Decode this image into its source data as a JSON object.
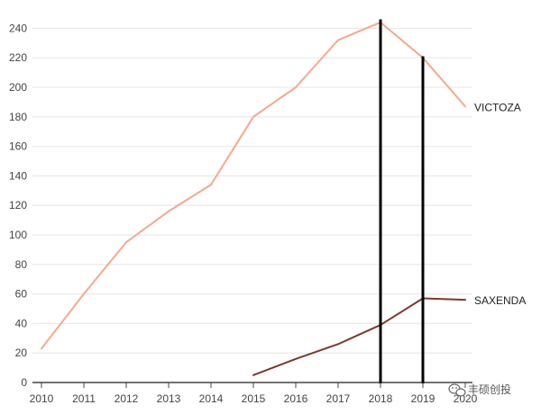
{
  "chart_data": {
    "type": "line",
    "x": [
      "2010",
      "2011",
      "2012",
      "2013",
      "2014",
      "2015",
      "2016",
      "2017",
      "2018",
      "2019",
      "2020"
    ],
    "ylim": [
      0,
      240
    ],
    "yticks": [
      0,
      20,
      40,
      60,
      80,
      100,
      120,
      140,
      160,
      180,
      200,
      220,
      240
    ],
    "grid": "horizontal",
    "series": [
      {
        "name": "VICTOZA",
        "color": "#f4a98c",
        "points": [
          {
            "x": "2010",
            "y": 23
          },
          {
            "x": "2011",
            "y": 60
          },
          {
            "x": "2012",
            "y": 95
          },
          {
            "x": "2013",
            "y": 116
          },
          {
            "x": "2014",
            "y": 134
          },
          {
            "x": "2015",
            "y": 180
          },
          {
            "x": "2016",
            "y": 200
          },
          {
            "x": "2017",
            "y": 232
          },
          {
            "x": "2018",
            "y": 244
          },
          {
            "x": "2019",
            "y": 220
          },
          {
            "x": "2020",
            "y": 187
          }
        ]
      },
      {
        "name": "SAXENDA",
        "color": "#7a3b2b",
        "points": [
          {
            "x": "2015",
            "y": 5
          },
          {
            "x": "2016",
            "y": 16
          },
          {
            "x": "2017",
            "y": 26
          },
          {
            "x": "2018",
            "y": 39
          },
          {
            "x": "2019",
            "y": 57
          },
          {
            "x": "2020",
            "y": 56
          }
        ]
      }
    ],
    "reference_lines": [
      {
        "x": "2018",
        "top": 246
      },
      {
        "x": "2019",
        "top": 221
      }
    ],
    "label_color": "#222222",
    "axis_color": "#444444",
    "grid_color": "#e6e6e6",
    "ref_line_color": "#000000"
  },
  "watermark": {
    "text": "丰硕创投",
    "icon": "wechat-icon"
  }
}
